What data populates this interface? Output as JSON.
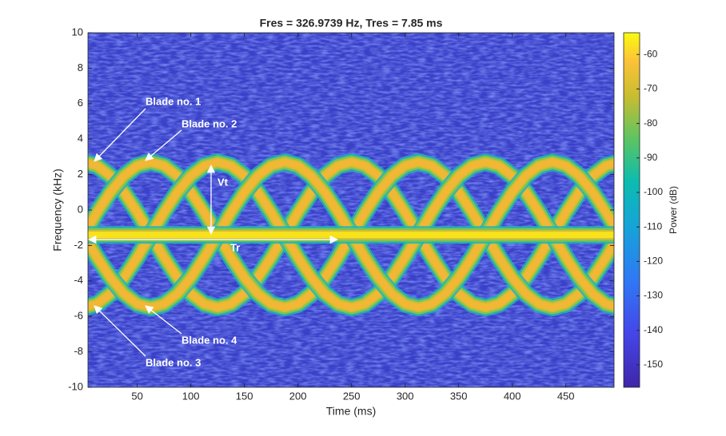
{
  "chart_data": {
    "type": "spectrogram",
    "title": "Fres = 326.9739 Hz, Tres = 7.85 ms",
    "x_label": "Time (ms)",
    "y_label": "Frequency (kHz)",
    "xlim": [
      4,
      495
    ],
    "ylim": [
      -10,
      10
    ],
    "xticks": [
      50,
      100,
      150,
      200,
      250,
      300,
      350,
      400,
      450
    ],
    "yticks": [
      -10,
      -8,
      -6,
      -4,
      -2,
      0,
      2,
      4,
      6,
      8,
      10
    ],
    "x": [
      0,
      12.5,
      25,
      37.5,
      50,
      62.5,
      75,
      87.5,
      100,
      112.5,
      125,
      137.5,
      150,
      162.5,
      175,
      187.5,
      200,
      212.5,
      225,
      237.5,
      250,
      262.5,
      275,
      287.5,
      300,
      312.5,
      325,
      337.5,
      350,
      362.5,
      375,
      387.5,
      400,
      412.5,
      425,
      437.5,
      450,
      462.5,
      475,
      487.5,
      500
    ],
    "series": [
      {
        "name": "Blade no. 1",
        "color": "#f2b735",
        "values": [
          2.7,
          2.5,
          1.92,
          1.01,
          -0.13,
          -1.4,
          -2.67,
          -3.81,
          -4.72,
          -5.3,
          -5.5,
          -5.3,
          -4.72,
          -3.81,
          -2.67,
          -1.4,
          -0.13,
          1.01,
          1.92,
          2.5,
          2.7,
          2.5,
          1.92,
          1.01,
          -0.13,
          -1.4,
          -2.67,
          -3.81,
          -4.72,
          -5.3,
          -5.5,
          -5.3,
          -4.72,
          -3.81,
          -2.67,
          -1.4,
          -0.13,
          1.01,
          1.92,
          2.5,
          2.7
        ]
      },
      {
        "name": "Blade no. 2",
        "color": "#f2b735",
        "values": [
          -1.4,
          -0.13,
          1.01,
          1.92,
          2.5,
          2.7,
          2.5,
          1.92,
          1.01,
          -0.13,
          -1.4,
          -2.67,
          -3.81,
          -4.72,
          -5.3,
          -5.5,
          -5.3,
          -4.72,
          -3.81,
          -2.67,
          -1.4,
          -0.13,
          1.01,
          1.92,
          2.5,
          2.7,
          2.5,
          1.92,
          1.01,
          -0.13,
          -1.4,
          -2.67,
          -3.81,
          -4.72,
          -5.3,
          -5.5,
          -5.3,
          -4.72,
          -3.81,
          -2.67,
          -1.4
        ]
      },
      {
        "name": "Blade no. 3",
        "color": "#f2b735",
        "values": [
          -5.5,
          -5.3,
          -4.72,
          -3.81,
          -2.67,
          -1.4,
          -0.13,
          1.01,
          1.92,
          2.5,
          2.7,
          2.5,
          1.92,
          1.01,
          -0.13,
          -1.4,
          -2.67,
          -3.81,
          -4.72,
          -5.3,
          -5.5,
          -5.3,
          -4.72,
          -3.81,
          -2.67,
          -1.4,
          -0.13,
          1.01,
          1.92,
          2.5,
          2.7,
          2.5,
          1.92,
          1.01,
          -0.13,
          -1.4,
          -2.67,
          -3.81,
          -4.72,
          -5.3,
          -5.5
        ]
      },
      {
        "name": "Blade no. 4",
        "color": "#f2b735",
        "values": [
          -1.4,
          -2.67,
          -3.81,
          -4.72,
          -5.3,
          -5.5,
          -5.3,
          -4.72,
          -3.81,
          -2.67,
          -1.4,
          -0.13,
          1.01,
          1.92,
          2.5,
          2.7,
          2.5,
          1.92,
          1.01,
          -0.13,
          -1.4,
          -2.67,
          -3.81,
          -4.72,
          -5.3,
          -5.5,
          -5.3,
          -4.72,
          -3.81,
          -2.67,
          -1.4,
          -0.13,
          1.01,
          1.92,
          2.5,
          2.7,
          2.5,
          1.92,
          1.01,
          -0.13,
          -1.4
        ]
      },
      {
        "color": "#f7e21c",
        "values": [
          -1.4,
          -1.4,
          -1.4,
          -1.4,
          -1.4,
          -1.4,
          -1.4,
          -1.4,
          -1.4,
          -1.4,
          -1.4,
          -1.4,
          -1.4,
          -1.4,
          -1.4,
          -1.4,
          -1.4,
          -1.4,
          -1.4,
          -1.4,
          -1.4,
          -1.4,
          -1.4,
          -1.4,
          -1.4,
          -1.4,
          -1.4,
          -1.4,
          -1.4,
          -1.4,
          -1.4,
          -1.4,
          -1.4,
          -1.4,
          -1.4,
          -1.4,
          -1.4,
          -1.4,
          -1.4,
          -1.4,
          -1.4
        ]
      }
    ],
    "annotations": [
      "Vt",
      "Tr"
    ],
    "colorbar": {
      "label": "Power (dB)",
      "lim": [
        -156.5,
        -53.7
      ],
      "ticks": [
        -150,
        -140,
        -130,
        -120,
        -110,
        -100,
        -90,
        -80,
        -70,
        -60
      ]
    }
  }
}
